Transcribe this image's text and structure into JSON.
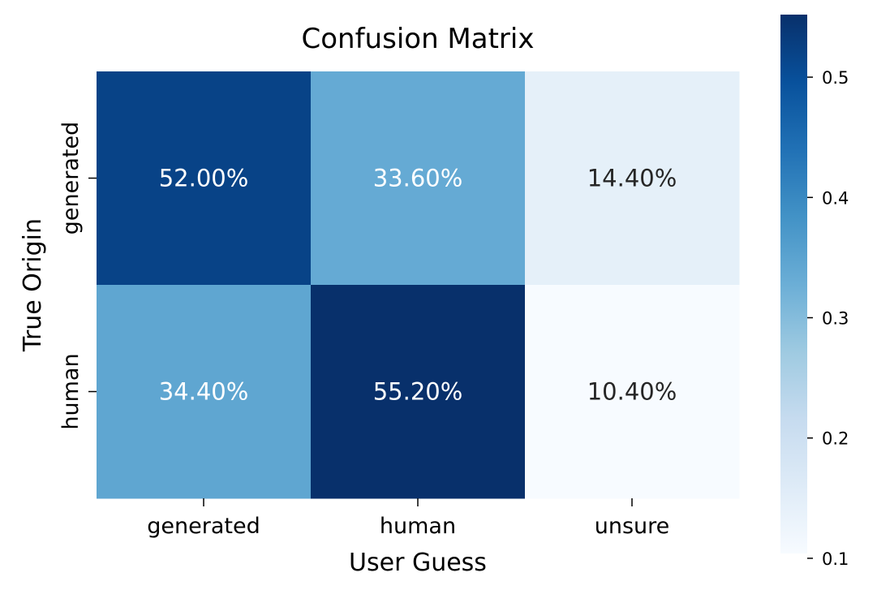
{
  "chart_data": {
    "type": "heatmap",
    "title": "Confusion Matrix",
    "xlabel": "User Guess",
    "ylabel": "True Origin",
    "x_categories": [
      "generated",
      "human",
      "unsure"
    ],
    "y_categories": [
      "generated",
      "human"
    ],
    "values": [
      [
        0.52,
        0.336,
        0.144
      ],
      [
        0.344,
        0.552,
        0.104
      ]
    ],
    "cell_labels": [
      [
        "52.00%",
        "33.60%",
        "14.40%"
      ],
      [
        "34.40%",
        "55.20%",
        "10.40%"
      ]
    ],
    "colormap": "Blues",
    "colorbar": {
      "range": [
        0.104,
        0.552
      ],
      "ticks": [
        0.1,
        0.2,
        0.3,
        0.4,
        0.5
      ],
      "tick_labels": [
        "0.1",
        "0.2",
        "0.3",
        "0.4",
        "0.5"
      ]
    },
    "colors": {
      "low": "#f7fbff",
      "high": "#08306b",
      "text_dark": "#262626",
      "text_light": "#ffffff"
    }
  }
}
